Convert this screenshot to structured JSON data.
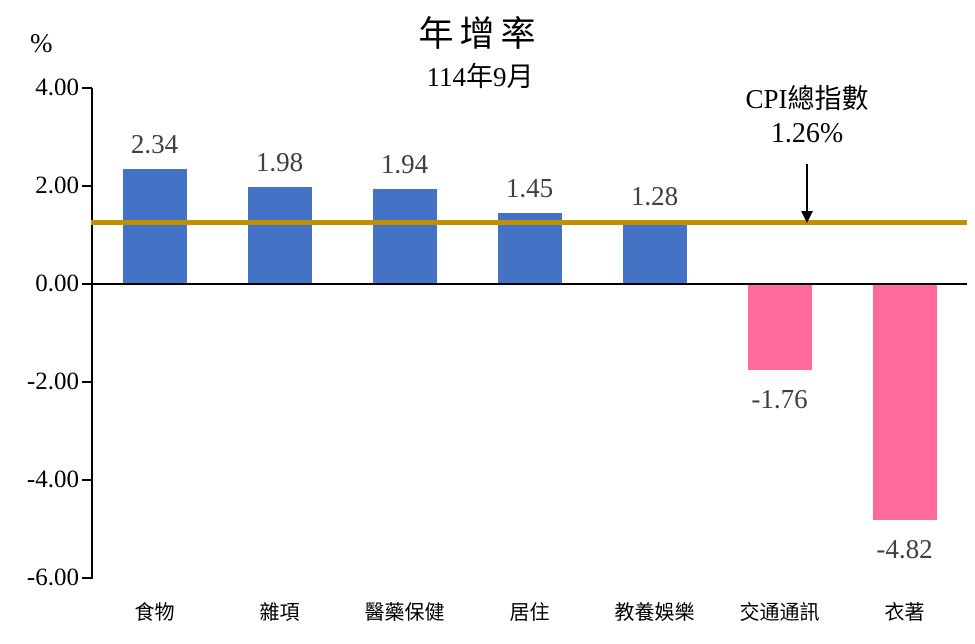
{
  "chart_data": {
    "type": "bar",
    "title": "年增率",
    "subtitle": "114年9月",
    "unit_label": "%",
    "categories": [
      "食物",
      "雜項",
      "醫藥保健",
      "居住",
      "教養娛樂",
      "交通通訊",
      "衣著"
    ],
    "values": [
      2.34,
      1.98,
      1.94,
      1.45,
      1.28,
      -1.76,
      -4.82
    ],
    "value_labels": [
      "2.34",
      "1.98",
      "1.94",
      "1.45",
      "1.28",
      "-1.76",
      "-4.82"
    ],
    "reference_line": {
      "label_line1": "CPI總指數",
      "label_line2": "1.26%",
      "value": 1.26,
      "color": "#BF9000"
    },
    "yticks": [
      "4.00",
      "2.00",
      "0.00",
      "-2.00",
      "-4.00",
      "-6.00"
    ],
    "ytick_values": [
      4,
      2,
      0,
      -2,
      -4,
      -6
    ],
    "ylim": [
      -6,
      4
    ],
    "grid": false,
    "legend_position": "none",
    "colors": {
      "positive_bar": "#4472C4",
      "negative_bar": "#FF699B",
      "value_label_text": "#404040",
      "axis_text": "#000000"
    }
  }
}
